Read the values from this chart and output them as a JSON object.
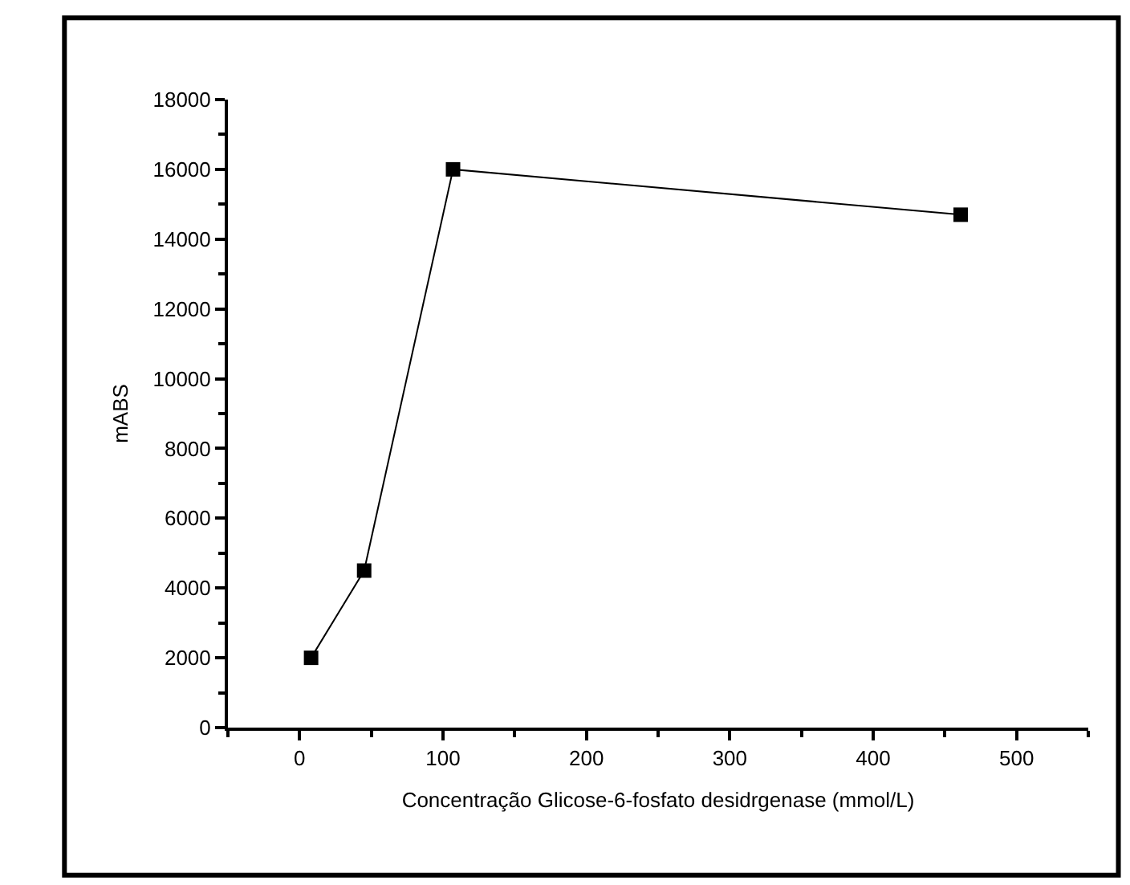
{
  "chart_data": {
    "type": "line",
    "xlabel": "Concentração Glicose-6-fosfato desidrgenase (mmol/L)",
    "ylabel": "mABS",
    "x": [
      8,
      45,
      107,
      461
    ],
    "series": [
      {
        "color": "#000000",
        "values": [
          2000,
          4500,
          16000,
          14700
        ]
      }
    ],
    "xlim": [
      -50,
      550
    ],
    "xticks": [
      0,
      100,
      200,
      300,
      400,
      500
    ],
    "ylim": [
      0,
      18000
    ],
    "yticks": [
      0,
      2000,
      4000,
      6000,
      8000,
      10000,
      12000,
      14000,
      16000,
      18000
    ],
    "marker": "square",
    "line_style": "solid",
    "legend": false
  }
}
